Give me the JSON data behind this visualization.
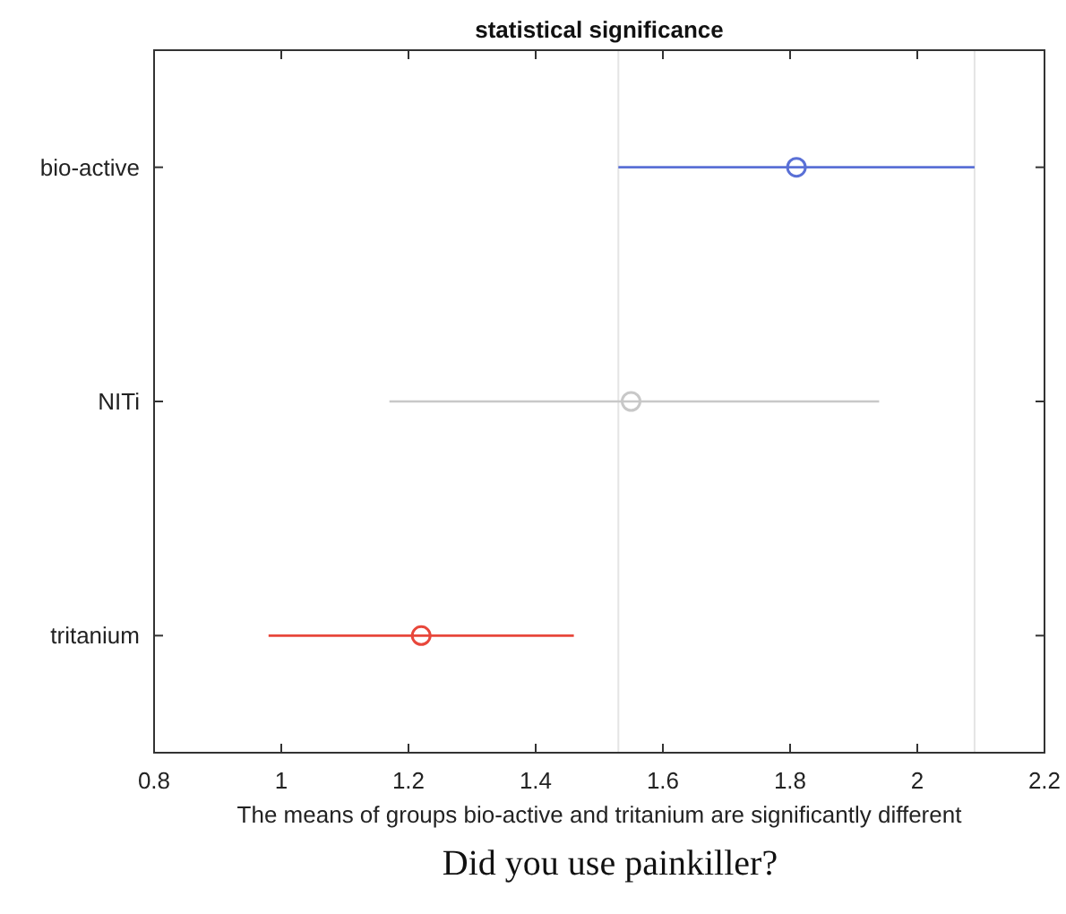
{
  "chart_data": {
    "type": "scatter",
    "title": "statistical significance",
    "xlabel": "The means of groups bio-active and tritanium are significantly different",
    "annotations": [
      "Did you use painkiller?"
    ],
    "orientation": "horizontal",
    "categories": [
      "bio-active",
      "NITi",
      "tritanium"
    ],
    "values": [
      1.81,
      1.55,
      1.22
    ],
    "errors": [
      [
        1.53,
        2.09
      ],
      [
        1.17,
        1.94
      ],
      [
        0.98,
        1.46
      ]
    ],
    "colors": [
      "#5a70d6",
      "#c8c8c8",
      "#e8473b"
    ],
    "marker": "circle",
    "grid": false,
    "xlim": [
      0.8,
      2.2
    ],
    "xticks": [
      0.8,
      1,
      1.2,
      1.4,
      1.6,
      1.8,
      2,
      2.2
    ],
    "ref_lines": [
      {
        "axis": "x",
        "value": 1.53,
        "color": "#e4e4e4"
      },
      {
        "axis": "x",
        "value": 2.09,
        "color": "#e4e4e4"
      }
    ]
  }
}
